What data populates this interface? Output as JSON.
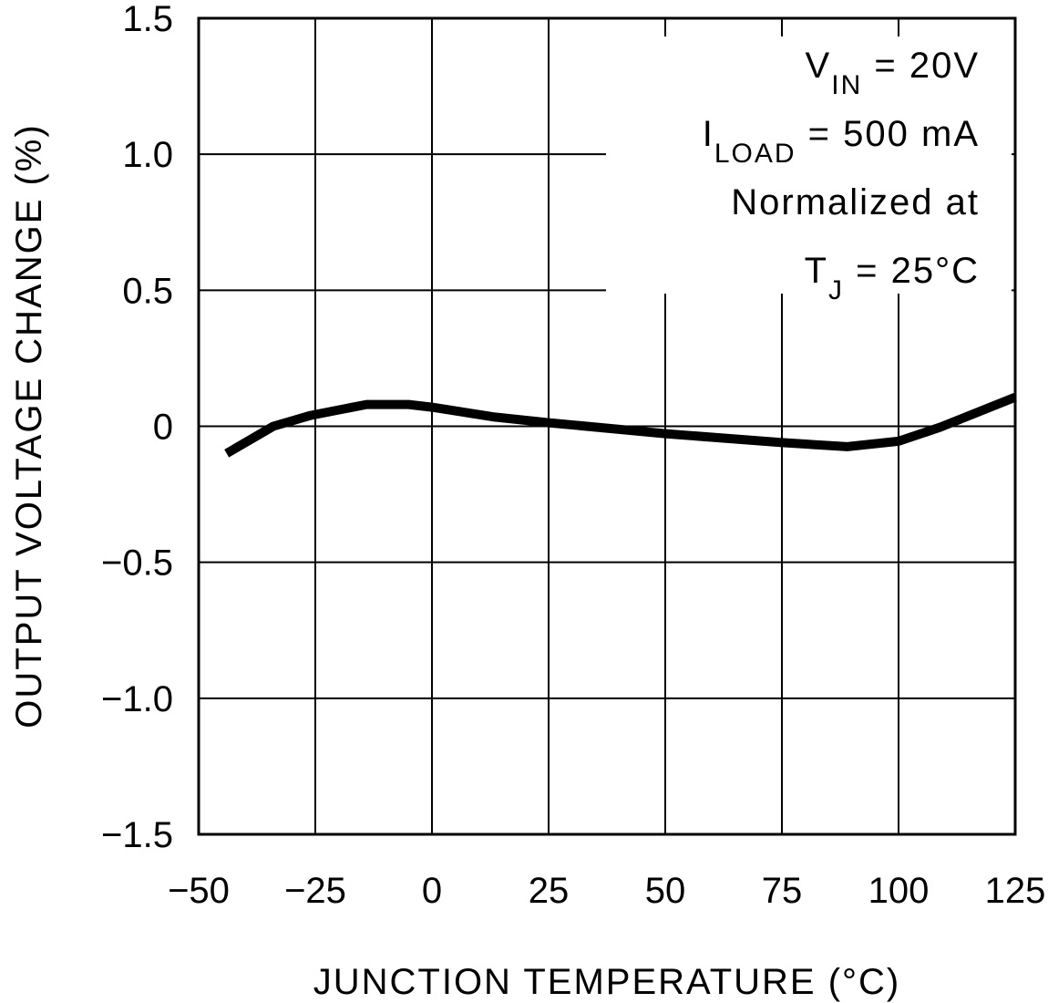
{
  "chart_data": {
    "type": "line",
    "title": "",
    "xlabel": "JUNCTION TEMPERATURE (°C)",
    "ylabel": "OUTPUT VOLTAGE CHANGE (%)",
    "xlim": [
      -50,
      125
    ],
    "ylim": [
      -1.5,
      1.5
    ],
    "xticks": [
      -50,
      -25,
      0,
      25,
      50,
      75,
      100,
      125
    ],
    "xtick_labels": [
      "−50",
      "−25",
      "0",
      "25",
      "50",
      "75",
      "100",
      "125"
    ],
    "yticks": [
      1.5,
      1.0,
      0.5,
      0,
      -0.5,
      -1.0,
      -1.5
    ],
    "ytick_labels": [
      "1.5",
      "1.0",
      "0.5",
      "0",
      "−0.5",
      "−1.0",
      "−1.5"
    ],
    "grid": true,
    "line_color": "#000000",
    "annotations": [
      {
        "main": "V",
        "sub": "IN",
        "rest": " = 20V"
      },
      {
        "main": "I",
        "sub": "LOAD",
        "rest": " = 500 mA"
      },
      {
        "main": "Normalized at",
        "sub": "",
        "rest": ""
      },
      {
        "main": "T",
        "sub": "J",
        "rest": " = 25°C"
      }
    ],
    "series": [
      {
        "x": [
          -44,
          -34,
          -26,
          -14,
          -5,
          0,
          13,
          25,
          50,
          75,
          89,
          100,
          109,
          125
        ],
        "y": [
          -0.1,
          0.0,
          0.04,
          0.08,
          0.08,
          0.07,
          0.035,
          0.013,
          -0.027,
          -0.06,
          -0.075,
          -0.055,
          -0.003,
          0.107
        ]
      }
    ]
  }
}
